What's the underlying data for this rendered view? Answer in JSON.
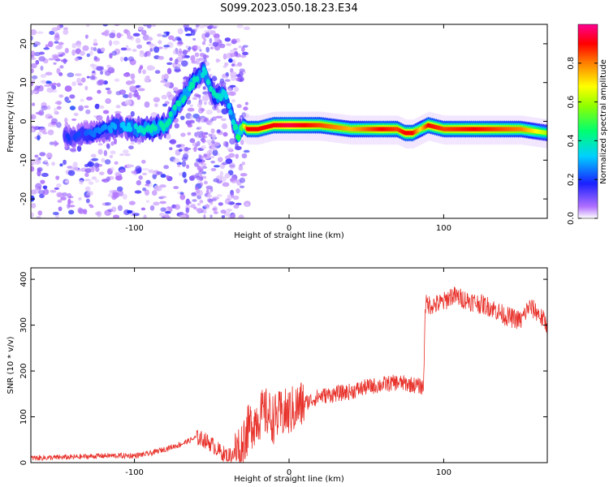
{
  "title": "S099.2023.050.18.23.E34",
  "chart_data": [
    {
      "type": "heatmap",
      "xlabel": "Height of straight line (km)",
      "ylabel": "Frequency (Hz)",
      "xlim": [
        -167,
        167
      ],
      "ylim": [
        -25,
        25
      ],
      "xticks": [
        -100,
        0,
        100
      ],
      "yticks": [
        -20,
        -10,
        0,
        10,
        20
      ],
      "colorbar": {
        "label": "Normalized spectral amplitude",
        "range": [
          0,
          1
        ],
        "ticks": [
          "0.0",
          "0.2",
          "0.4",
          "0.6",
          "0.8"
        ],
        "colormap": "rainbow (white-violet-blue-cyan-green-yellow-red-magenta)"
      },
      "ridge": {
        "x": [
          -140,
          -125,
          -110,
          -100,
          -90,
          -80,
          -72,
          -62,
          -55,
          -48,
          -42,
          -38,
          -33,
          -30,
          -27,
          -20,
          -10,
          0,
          20,
          40,
          60,
          70,
          75,
          80,
          85,
          90,
          100,
          120,
          150,
          167
        ],
        "y": [
          -4,
          -3,
          -1,
          -2,
          -2,
          -1,
          4,
          10,
          13,
          6,
          7,
          3,
          -4,
          -1,
          -2,
          -2,
          -1,
          -1,
          -1,
          -2,
          -2,
          -2,
          -3,
          -3,
          -2,
          -1,
          -2,
          -2,
          -2,
          -3
        ],
        "amplitude": [
          0.2,
          0.25,
          0.3,
          0.35,
          0.4,
          0.4,
          0.4,
          0.4,
          0.35,
          0.4,
          0.35,
          0.3,
          0.45,
          0.55,
          0.9,
          0.9,
          0.9,
          0.95,
          0.85,
          0.75,
          0.9,
          0.85,
          0.9,
          0.9,
          0.7,
          0.9,
          0.85,
          0.9,
          0.8,
          0.6
        ]
      }
    },
    {
      "type": "line",
      "xlabel": "Height of straight line (km)",
      "ylabel": "SNR (10 * v/v)",
      "xlim": [
        -167,
        167
      ],
      "ylim": [
        0,
        425
      ],
      "xticks": [
        -100,
        0,
        100
      ],
      "yticks": [
        0,
        100,
        200,
        300,
        400
      ],
      "color": "#e8322b",
      "series": [
        {
          "x": [
            -167,
            -140,
            -120,
            -100,
            -90,
            -80,
            -70,
            -60,
            -55,
            -50,
            -45,
            -40,
            -35,
            -30,
            -25,
            -20,
            -15,
            -10,
            -5,
            0,
            5,
            10,
            20,
            30,
            40,
            50,
            60,
            70,
            80,
            87,
            88,
            95,
            100,
            105,
            110,
            120,
            130,
            140,
            150,
            155,
            160,
            167
          ],
          "y": [
            10,
            12,
            15,
            15,
            20,
            30,
            40,
            55,
            50,
            40,
            25,
            15,
            20,
            50,
            80,
            100,
            110,
            95,
            105,
            110,
            120,
            130,
            145,
            150,
            155,
            165,
            170,
            175,
            170,
            165,
            345,
            345,
            350,
            365,
            360,
            350,
            340,
            320,
            310,
            340,
            330,
            300
          ]
        }
      ]
    }
  ]
}
